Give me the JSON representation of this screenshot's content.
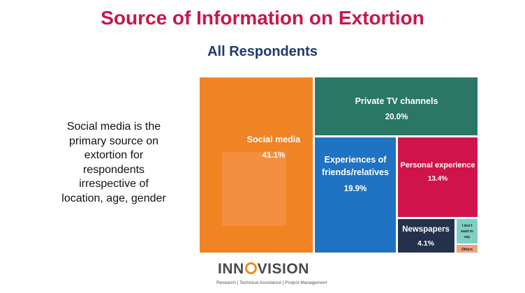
{
  "title": "Source of Information on Extortion",
  "subtitle": "All Respondents",
  "note": "Social media is the primary source on extortion for respondents irrespective of location, age, gender",
  "logo": {
    "word_a": "INN",
    "word_b": "VISION",
    "tagline": "Research | Technical Assistance | Project Management"
  },
  "chart_data": {
    "type": "treemap",
    "title": "Source of Information on Extortion",
    "subtitle": "All Respondents",
    "series": [
      {
        "label": "Social media",
        "value": 41.1,
        "value_label": "41.1%",
        "color": "#f08323"
      },
      {
        "label": "Private TV channels",
        "value": 20.0,
        "value_label": "20.0%",
        "color": "#2a7766"
      },
      {
        "label": "Experiences of friends/relatives",
        "value": 19.9,
        "value_label": "19.9%",
        "color": "#1f73c2"
      },
      {
        "label": "Personal experience",
        "value": 13.4,
        "value_label": "13.4%",
        "color": "#d0134b"
      },
      {
        "label": "Newspapers",
        "value": 4.1,
        "value_label": "4.1%",
        "color": "#24314a"
      },
      {
        "label": "I don't want to say",
        "value": null,
        "value_label": "",
        "color": "#7fd0c2"
      },
      {
        "label": "Others",
        "value": null,
        "value_label": "",
        "color": "#f2a27a"
      }
    ]
  }
}
